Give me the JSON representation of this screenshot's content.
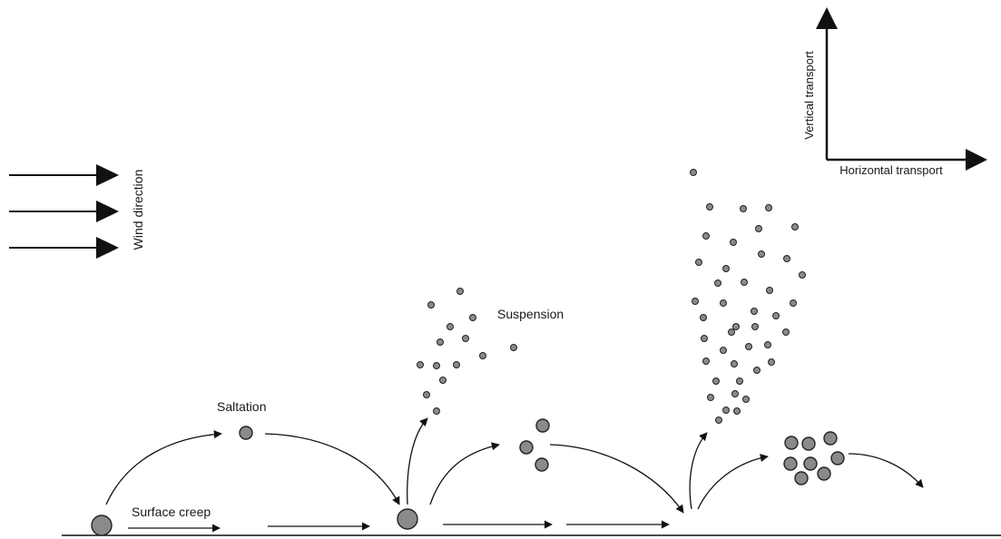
{
  "labels": {
    "wind_direction": "Wind direction",
    "vertical_transport": "Vertical transport",
    "horizontal_transport": "Horizontal transport",
    "suspension": "Suspension",
    "saltation": "Saltation",
    "surface_creep": "Surface creep"
  },
  "colors": {
    "particle_fill": "#8a8a8a",
    "particle_stroke": "#222222",
    "line": "#111111"
  }
}
